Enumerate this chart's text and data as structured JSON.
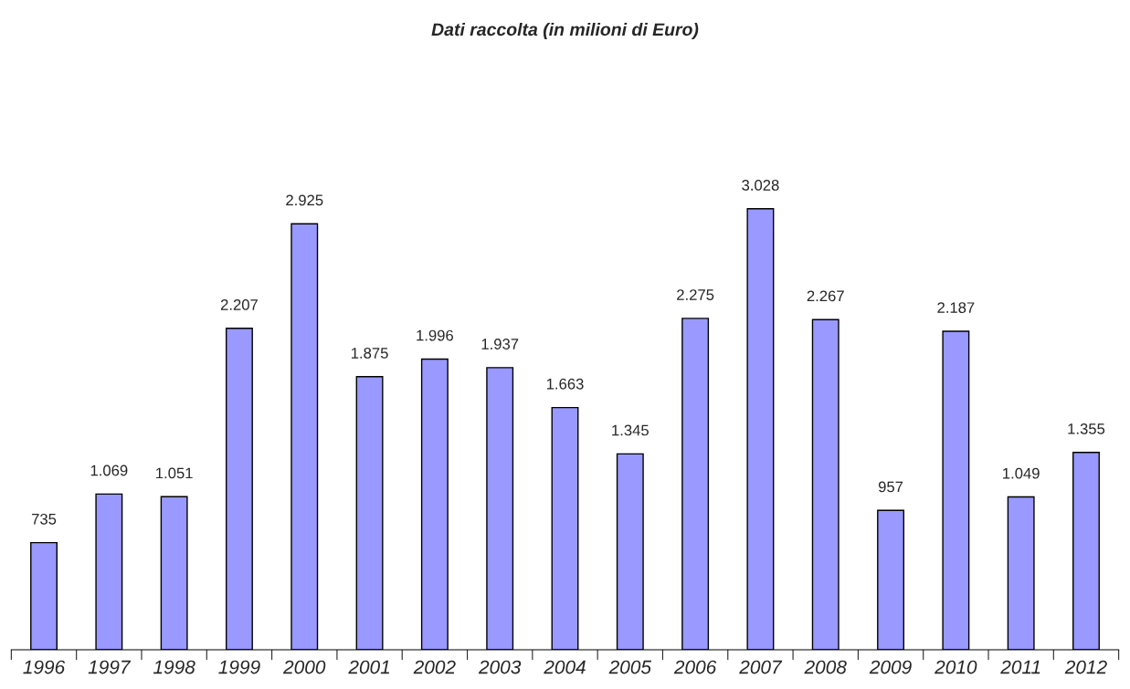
{
  "chart_data": {
    "type": "bar",
    "title": "Dati raccolta (in milioni di Euro)",
    "categories": [
      "1996",
      "1997",
      "1998",
      "1999",
      "2000",
      "2001",
      "2002",
      "2003",
      "2004",
      "2005",
      "2006",
      "2007",
      "2008",
      "2009",
      "2010",
      "2011",
      "2012"
    ],
    "values": [
      735,
      1069,
      1051,
      2207,
      2925,
      1875,
      1996,
      1937,
      1663,
      1345,
      2275,
      3028,
      2267,
      957,
      2187,
      1049,
      1355
    ],
    "value_labels": [
      "735",
      "1.069",
      "1.051",
      "2.207",
      "2.925",
      "1.875",
      "1.996",
      "1.937",
      "1.663",
      "1.345",
      "2.275",
      "3.028",
      "2.267",
      "957",
      "2.187",
      "1.049",
      "1.355"
    ],
    "color": "#9999ff",
    "grid": false,
    "legend": false
  }
}
